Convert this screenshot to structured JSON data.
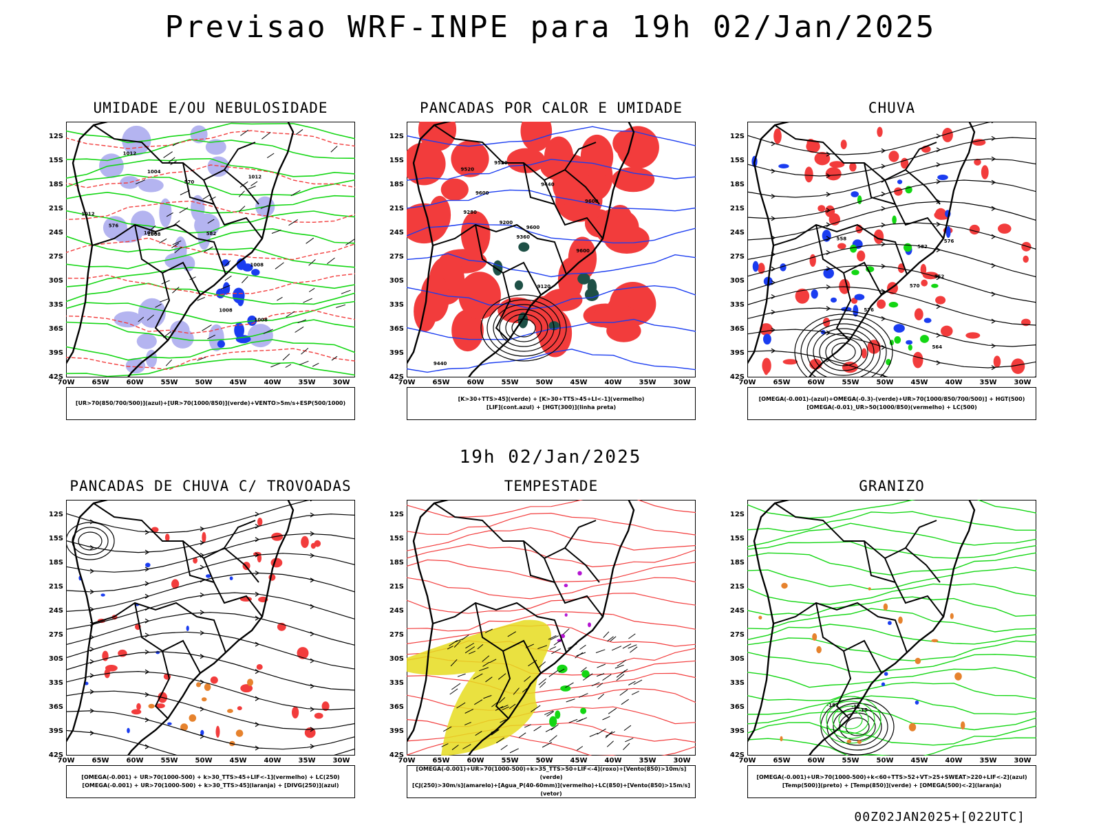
{
  "header": {
    "title": "Previsao WRF-INPE  para 19h 02/Jan/2025"
  },
  "middle_title": "19h 02/Jan/2025",
  "footer": "00Z02JAN2025+[022UTC]",
  "axes": {
    "lat_labels": [
      "12S",
      "15S",
      "18S",
      "21S",
      "24S",
      "27S",
      "30S",
      "33S",
      "36S",
      "39S",
      "42S"
    ],
    "lon_labels": [
      "70W",
      "65W",
      "60W",
      "55W",
      "50W",
      "45W",
      "40W",
      "35W",
      "30W"
    ]
  },
  "colors": {
    "red": "#f23c3c",
    "green": "#13d613",
    "blue": "#1a3cf0",
    "lavender": "#b4b4f0",
    "yellow": "#e6dc1e",
    "orange": "#e6822d",
    "darkgreen": "#1e5046",
    "purple": "#b414d2"
  },
  "panels": [
    {
      "title": "UMIDADE E/OU NEBULOSIDADE",
      "legend": [
        "[UR>70(850/700/500)](azul)+[UR>70(1000/850)](verde)+VENTO>5m/s+ESP(500/1000)"
      ],
      "labels": [
        "1008",
        "1008",
        "1008",
        "1012",
        "1012",
        "1004",
        "1004",
        "1008",
        "1012",
        "570",
        "576",
        "582"
      ]
    },
    {
      "title": "PANCADAS POR CALOR E UMIDADE",
      "legend": [
        "[K>30+TTS>45](verde) + [K>30+TTS>45+LI<-1](vermelho)",
        "[LIF](cont.azul) + [HGT(300)](linha preta)"
      ],
      "labels": [
        "9600",
        "9600",
        "9600",
        "9600",
        "9520",
        "9520",
        "9440",
        "9360",
        "9280",
        "9200",
        "9120",
        "9440"
      ]
    },
    {
      "title": "CHUVA",
      "legend": [
        "[OMEGA(-0.001)-(azul)+OMEGA(-0.3)-(verde)+UR>70(1000/850/700/500)] + HGT(500)",
        "[OMEGA(-0.01)_UR>50(1000/850)(vermelho) + LC(500)"
      ],
      "labels": [
        "576",
        "576",
        "564",
        "558",
        "552",
        "570",
        "582"
      ]
    },
    {
      "title": "PANCADAS DE CHUVA C/ TROVOADAS",
      "legend": [
        "[OMEGA(-0.001) + UR>70(1000-500) + k>30_TTS>45+LIF<-1](vermelho) + LC(250)",
        "[OMEGA(-0.001) + UR>70(1000-500) + k>30_TTS>45](laranja) + [DIVG(250)](azul)"
      ],
      "labels": []
    },
    {
      "title": "TEMPESTADE",
      "legend": [
        "[OMEGA(-0.001)+UR>70(1000-500)+k>35_TTS>50+LIF<-4](roxo)+[Vento(850)>10m/s](verde)",
        "[CJ(250)>30m/s](amarelo)+[Agua_P(40-60mm)](vermelho)+LC(850)+[Vento(850)>15m/s](vetor)"
      ],
      "labels": []
    },
    {
      "title": "GRANIZO",
      "legend": [
        "[OMEGA(-0.001)+UR>70(1000-500)+k<60+TTS>52+VT>25+SWEAT>220+LIF<-2](azul)",
        "[Temp(500)](preto) + [Temp(850)](verde) + [OMEGA(500)<-2](laranja)"
      ],
      "labels": [
        "-12",
        "-18",
        "-15"
      ]
    }
  ]
}
